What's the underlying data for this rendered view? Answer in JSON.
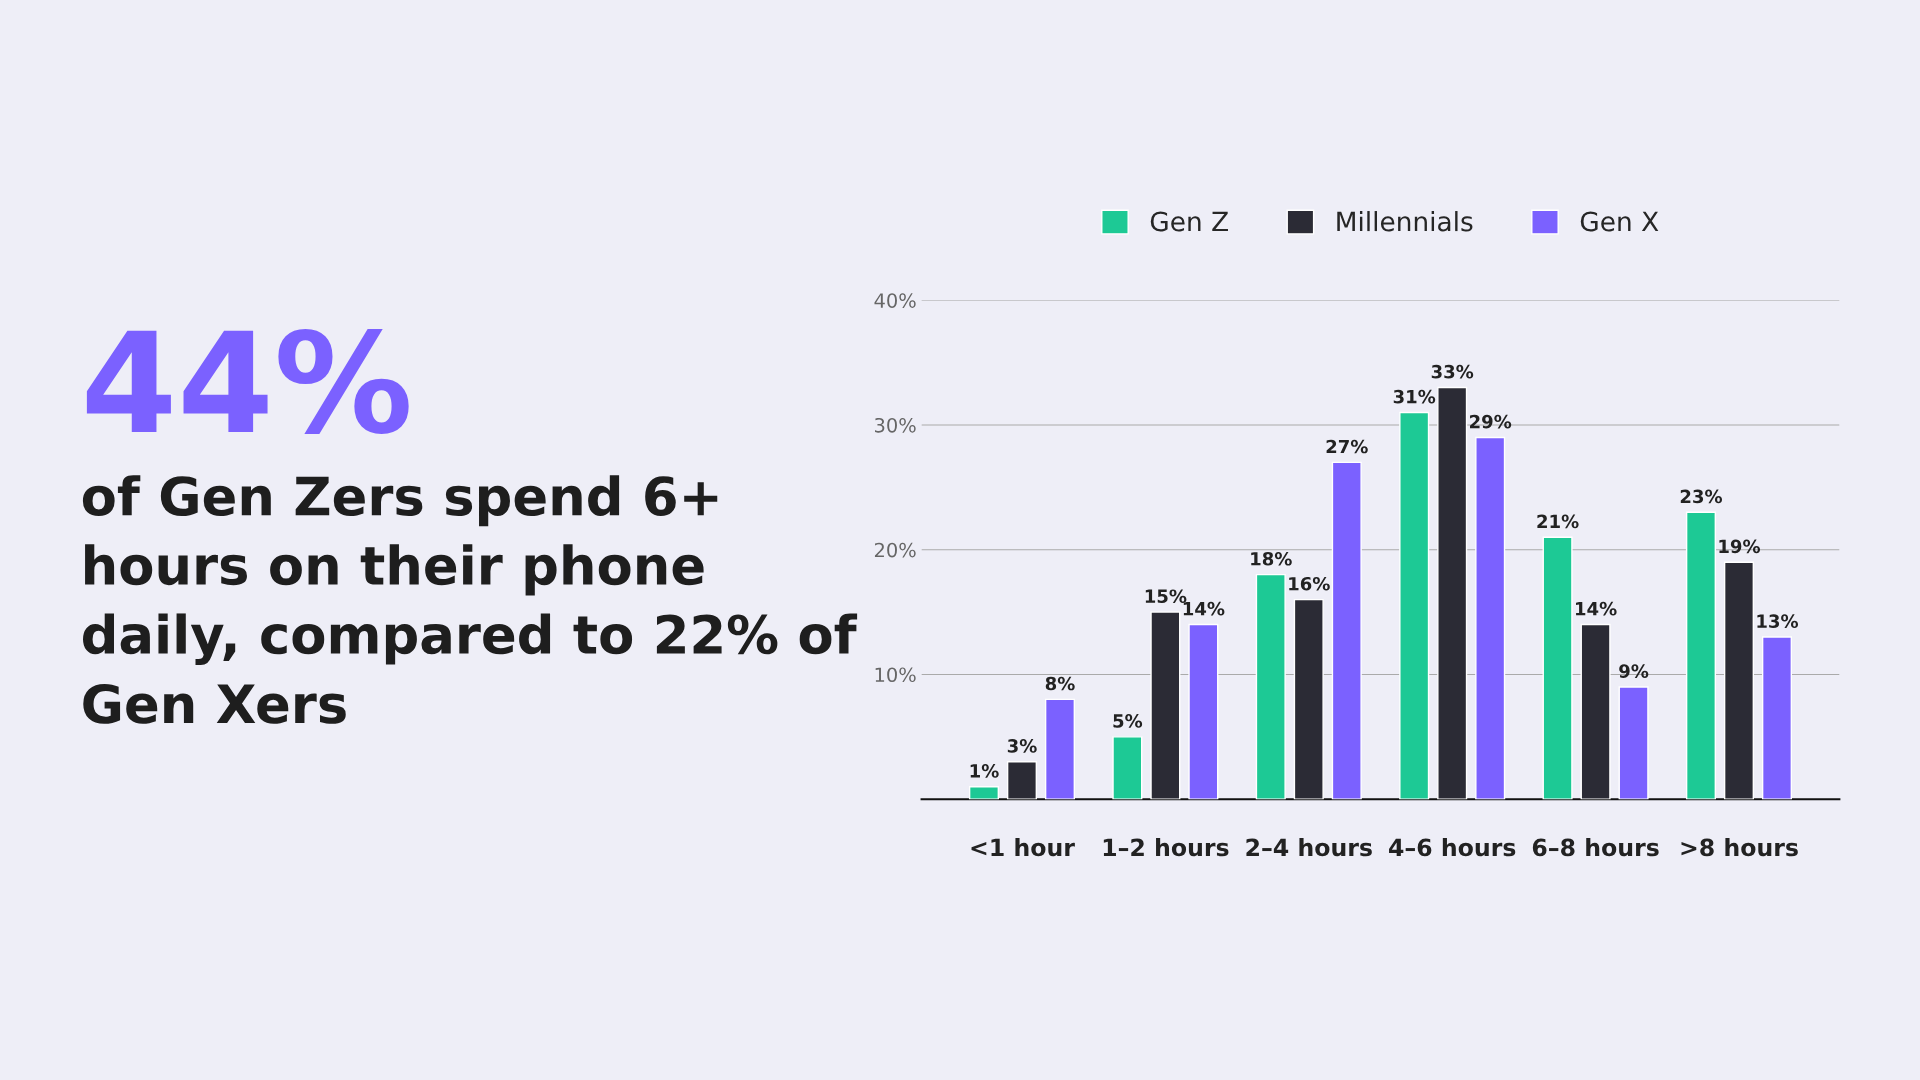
{
  "chart_data": {
    "type": "bar",
    "title": "44%",
    "subtitle": "of Gen Zers spend 6+ hours on their phone daily, compared to 22% of Gen Xers",
    "categories": [
      "<1 hour",
      "1–2 hours",
      "2–4 hours",
      "4–6 hours",
      "6–8 hours",
      ">8 hours"
    ],
    "series": [
      {
        "name": "Gen Z",
        "color": "#1dc995",
        "values": [
          1,
          5,
          18,
          31,
          21,
          23
        ],
        "value_labels": [
          "1%",
          "5%",
          "18%",
          "31%",
          "21%",
          "23%"
        ]
      },
      {
        "name": "Millennials",
        "color": "#2b2b35",
        "values": [
          3,
          15,
          16,
          33,
          14,
          19
        ],
        "value_labels": [
          "3%",
          "15%",
          "16%",
          "33%",
          "14%",
          "19%"
        ]
      },
      {
        "name": "Gen X",
        "color": "#7b61ff",
        "values": [
          8,
          14,
          27,
          29,
          9,
          13
        ],
        "value_labels": [
          "8%",
          "14%",
          "27%",
          "29%",
          "9%",
          "13%"
        ]
      }
    ],
    "ylim": [
      0,
      40
    ],
    "yticks": [
      {
        "value": 10,
        "label": "10%"
      },
      {
        "value": 20,
        "label": "20%"
      },
      {
        "value": 30,
        "label": "30%"
      },
      {
        "value": 40,
        "label": "40%"
      }
    ],
    "grid": "y",
    "legend": "top"
  }
}
